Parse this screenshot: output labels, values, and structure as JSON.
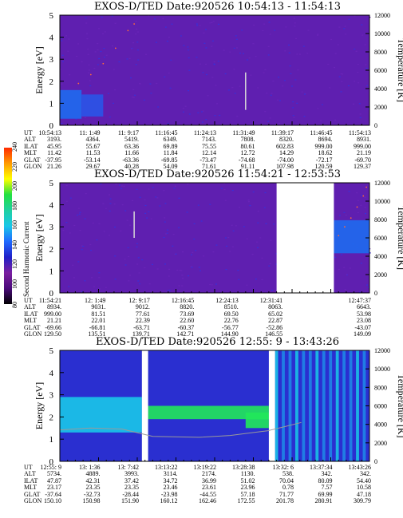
{
  "colors": {
    "background_blue": "#2a2fd0",
    "field_purple": "#5f1fb0",
    "high_blue": "#1e6af0",
    "cyan": "#19c8e8",
    "green": "#21e85a",
    "bright_green": "#3cff3c",
    "temp_trace_red": "#ff6a3a",
    "temp_trace_gray": "#9a9a9a",
    "colorbar": [
      "#000000",
      "#4a0a7a",
      "#7a1fa0",
      "#2020c8",
      "#1f6aff",
      "#19c8e8",
      "#20d0a0",
      "#22e040",
      "#ffff00",
      "#ff9a00",
      "#ff2a00"
    ]
  },
  "colorbar": {
    "label": "Second Harmonic Current",
    "ticks": [
      "80",
      "100",
      "120",
      "140",
      "160",
      "180",
      "200",
      "220",
      "240"
    ]
  },
  "panels": [
    {
      "title": "EXOS-D/TED   Date:920526   10:54:13 - 11:54:13",
      "ylabel_left": "Energy [eV]",
      "ylabel_right": "Temperature [K]",
      "left_ticks": [
        "0",
        "1",
        "2",
        "3",
        "4",
        "5"
      ],
      "right_ticks": [
        "0",
        "2000",
        "4000",
        "6000",
        "8000",
        "10000",
        "12000"
      ],
      "table": {
        "labels": [
          "UT",
          "ALT",
          "ILAT",
          "MLT",
          "GLAT",
          "GLON"
        ],
        "columns": [
          [
            "10:54:13",
            "3193.",
            "45.95",
            "11.42",
            "-37.95",
            "21.26"
          ],
          [
            "11: 1:49",
            "4364.",
            "55.67",
            "11.53",
            "-53.14",
            "29.67"
          ],
          [
            "11: 9:17",
            "5419.",
            "63.36",
            "11.66",
            "-63.36",
            "40.28"
          ],
          [
            "11:16:45",
            "6349.",
            "69.89",
            "11.84",
            "-69.85",
            "54.09"
          ],
          [
            "11:24:13",
            "7143.",
            "75.55",
            "12.14",
            "-73.47",
            "71.61"
          ],
          [
            "11:31:49",
            "7808.",
            "80.61",
            "12.72",
            "-74.68",
            "91.11"
          ],
          [
            "11:39:17",
            "8320.",
            "602.83",
            "14.29",
            "-74.00",
            "107.98"
          ],
          [
            "11:46:45",
            "8694.",
            "999.00",
            "18.62",
            "-72.17",
            "120.59"
          ],
          [
            "11:54:13",
            "8931.",
            "999.00",
            "21.19",
            "-69.70",
            "129.37"
          ]
        ]
      }
    },
    {
      "title": "EXOS-D/TED   Date:920526   11:54:21 - 12:53:53",
      "ylabel_left": "Energy [eV]",
      "ylabel_right": "Temperature [K]",
      "left_ticks": [
        "0",
        "1",
        "2",
        "3",
        "4",
        "5"
      ],
      "right_ticks": [
        "0",
        "2000",
        "4000",
        "6000",
        "8000",
        "10000",
        "12000"
      ],
      "table": {
        "labels": [
          "UT",
          "ALT",
          "ILAT",
          "MLT",
          "GLAT",
          "GLON"
        ],
        "columns": [
          [
            "11:54:21",
            "8934.",
            "999.00",
            "21.21",
            "-69.66",
            "129.50"
          ],
          [
            "12: 1:49",
            "9031.",
            "81.51",
            "22.01",
            "-66.81",
            "135.51"
          ],
          [
            "12: 9:17",
            "9012.",
            "77.61",
            "22.39",
            "-63.71",
            "139.71"
          ],
          [
            "12:16:45",
            "8820.",
            "73.69",
            "22.60",
            "-60.37",
            "142.71"
          ],
          [
            "12:24:13",
            "8510.",
            "69.50",
            "22.76",
            "-56.77",
            "144.90"
          ],
          [
            "12:31:41",
            "8063.",
            "65.02",
            "22.87",
            "-52.86",
            "146.55"
          ],
          [
            "",
            "",
            "",
            "",
            "",
            ""
          ],
          [
            "12:47:37",
            "6643.",
            "53.98",
            "23.08",
            "-43.07",
            "149.09"
          ]
        ]
      }
    },
    {
      "title": "EXOS-D/TED   Date:920526   12:55: 9 - 13:43:26",
      "ylabel_left": "Energy [eV]",
      "ylabel_right": "Temperature [K]",
      "left_ticks": [
        "0",
        "1",
        "2",
        "3",
        "4",
        "5"
      ],
      "right_ticks": [
        "0",
        "2000",
        "4000",
        "6000",
        "8000",
        "10000",
        "12000"
      ],
      "table": {
        "labels": [
          "UT",
          "ALT",
          "ILAT",
          "MLT",
          "GLAT",
          "GLON"
        ],
        "columns": [
          [
            "12:55: 9",
            "5734.",
            "47.87",
            "23.17",
            "-37.64",
            "150.10"
          ],
          [
            "13: 1:36",
            "4889.",
            "42.31",
            "23.35",
            "-32.73",
            "150.98"
          ],
          [
            "13: 7:42",
            "3993.",
            "37.42",
            "23.35",
            "-28.44",
            "151.90"
          ],
          [
            "13:13:22",
            "3114.",
            "34.72",
            "23.46",
            "-23.98",
            "160.12"
          ],
          [
            "13:19:22",
            "2174.",
            "36.99",
            "23.61",
            "-44.55",
            "162.46"
          ],
          [
            "13:28:38",
            "1130.",
            "51.02",
            "23.96",
            "57.18",
            "172.55"
          ],
          [
            "13:32: 6",
            "538.",
            "70.04",
            "0.78",
            "71.77",
            "201.78"
          ],
          [
            "13:37:34",
            "342.",
            "80.09",
            "7.57",
            "69.99",
            "280.91"
          ],
          [
            "13:43:26",
            "342.",
            "54.40",
            "10.58",
            "47.18",
            "309.79"
          ]
        ]
      }
    }
  ],
  "chart_data": [
    {
      "type": "heatmap",
      "title": "EXOS-D/TED   Date:920526   10:54:13 - 11:54:13",
      "xlabel": "",
      "ylabel": "Energy [eV]",
      "y2label": "Temperature [K]",
      "ylim": [
        0,
        5
      ],
      "y2lim": [
        0,
        12000
      ],
      "x": [
        "10:54:13",
        "11: 1:49",
        "11: 9:17",
        "11:16:45",
        "11:24:13",
        "11:31:49",
        "11:39:17",
        "11:46:45",
        "11:54:13"
      ],
      "bands": [
        {
          "x0": 0.0,
          "x1": 0.07,
          "e0": 0.3,
          "e1": 1.6,
          "level": "high"
        },
        {
          "x0": 0.07,
          "x1": 0.14,
          "e0": 0.4,
          "e1": 1.4,
          "level": "mid"
        }
      ],
      "temperature_points": [
        [
          0.06,
          1.9
        ],
        [
          0.1,
          2.3
        ],
        [
          0.14,
          2.8
        ],
        [
          0.18,
          3.5
        ],
        [
          0.22,
          4.3
        ],
        [
          0.24,
          4.6
        ]
      ],
      "marker": {
        "x": 0.6,
        "e0": 0.7,
        "e1": 2.4
      }
    },
    {
      "type": "heatmap",
      "title": "EXOS-D/TED   Date:920526   11:54:21 - 12:53:53",
      "xlabel": "",
      "ylabel": "Energy [eV]",
      "y2label": "Temperature [K]",
      "ylim": [
        0,
        5
      ],
      "y2lim": [
        0,
        12000
      ],
      "x": [
        "11:54:21",
        "12: 1:49",
        "12: 9:17",
        "12:16:45",
        "12:24:13",
        "12:31:41",
        "",
        "12:47:37"
      ],
      "gap": [
        0.7,
        0.885
      ],
      "bands": [
        {
          "x0": 0.885,
          "x1": 1.0,
          "e0": 1.8,
          "e1": 3.3,
          "level": "high"
        }
      ],
      "temperature_points": [
        [
          0.9,
          2.6
        ],
        [
          0.92,
          3.0
        ],
        [
          0.94,
          3.4
        ],
        [
          0.96,
          3.9
        ],
        [
          0.98,
          4.4
        ],
        [
          0.99,
          4.8
        ]
      ],
      "marker": {
        "x": 0.24,
        "e0": 2.5,
        "e1": 3.7
      }
    },
    {
      "type": "heatmap",
      "title": "EXOS-D/TED   Date:920526   12:55: 9 - 13:43:26",
      "xlabel": "",
      "ylabel": "Energy [eV]",
      "y2label": "Temperature [K]",
      "ylim": [
        0,
        5
      ],
      "y2lim": [
        0,
        12000
      ],
      "x": [
        "12:55: 9",
        "13: 1:36",
        "13: 7:42",
        "13:13:22",
        "13:19:22",
        "13:28:38",
        "13:32: 6",
        "13:37:34",
        "13:43:26"
      ],
      "gaps": [
        [
          0.265,
          0.285
        ],
        [
          0.675,
          0.695
        ]
      ],
      "bands": [
        {
          "x0": 0.285,
          "x1": 0.675,
          "e0": 1.9,
          "e1": 2.5,
          "level": "green"
        },
        {
          "x0": 0.6,
          "x1": 0.675,
          "e0": 1.5,
          "e1": 2.2,
          "level": "green"
        },
        {
          "x0": 0.0,
          "x1": 0.265,
          "e0": 1.3,
          "e1": 2.9,
          "level": "cyan"
        },
        {
          "x0": 0.695,
          "x1": 1.0,
          "e0": 0.0,
          "e1": 5.0,
          "level": "cyan-streaks"
        }
      ],
      "temperature_points": [
        [
          0.0,
          3400
        ],
        [
          0.1,
          3600
        ],
        [
          0.2,
          3500
        ],
        [
          0.3,
          2700
        ],
        [
          0.45,
          2600
        ],
        [
          0.55,
          2800
        ],
        [
          0.62,
          3100
        ],
        [
          0.67,
          3300
        ],
        [
          0.72,
          3700
        ],
        [
          0.78,
          4200
        ]
      ]
    }
  ]
}
